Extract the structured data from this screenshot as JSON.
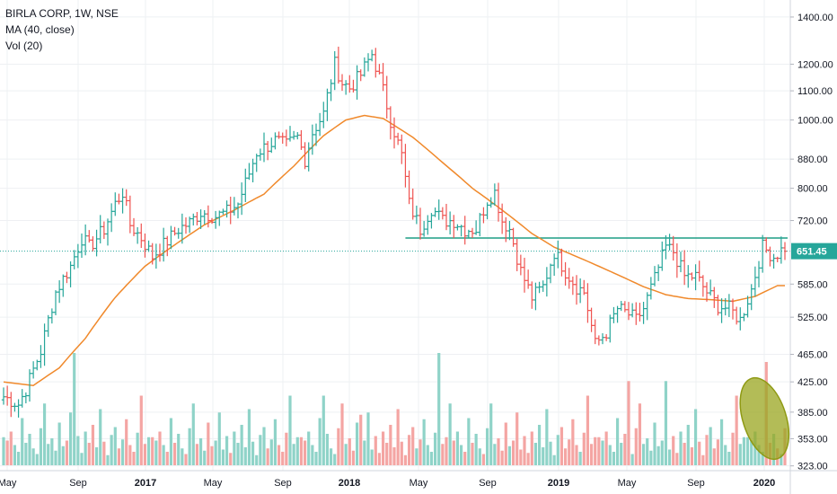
{
  "header": {
    "symbol_line": "BIRLA CORP, 1W, NSE",
    "ma_line": "MA (40, close)",
    "vol_line": "Vol (20)"
  },
  "colors": {
    "up": "#26a69a",
    "down": "#ef5350",
    "vol_up": "#8fd3c8",
    "vol_down": "#f4a5a3",
    "ma": "#f0892b",
    "hline": "#1e9e86",
    "grid": "#eef0f3",
    "ellipse_fill": "#9aa61f",
    "ellipse_stroke": "#8f9a14",
    "price_badge": "#26a69a"
  },
  "chart_data": {
    "type": "ohlc",
    "title": "BIRLA CORP, 1W, NSE",
    "y_axis": {
      "scale": "log",
      "range": [
        318,
        1480
      ],
      "tick_labels": [
        "1400.00",
        "1200.00",
        "1100.00",
        "1000.00",
        "880.00",
        "800.00",
        "720.00",
        "651.45",
        "585.00",
        "525.00",
        "465.00",
        "425.00",
        "385.00",
        "353.00",
        "323.00"
      ]
    },
    "x_axis": {
      "tick_labels": [
        "May",
        "Sep",
        "2017",
        "May",
        "Sep",
        "2018",
        "May",
        "Sep",
        "2019",
        "May",
        "Sep",
        "2020"
      ]
    },
    "last_price": 651.45,
    "horizontal_level": 680,
    "price_path": [
      [
        0,
        405
      ],
      [
        4,
        395
      ],
      [
        6,
        415
      ],
      [
        10,
        470
      ],
      [
        14,
        570
      ],
      [
        18,
        620
      ],
      [
        21,
        680
      ],
      [
        23,
        660
      ],
      [
        27,
        700
      ],
      [
        30,
        760
      ],
      [
        32,
        790
      ],
      [
        34,
        710
      ],
      [
        37,
        680
      ],
      [
        40,
        640
      ],
      [
        43,
        665
      ],
      [
        47,
        700
      ],
      [
        50,
        715
      ],
      [
        53,
        740
      ],
      [
        57,
        730
      ],
      [
        60,
        740
      ],
      [
        63,
        760
      ],
      [
        66,
        840
      ],
      [
        68,
        900
      ],
      [
        71,
        920
      ],
      [
        73,
        935
      ],
      [
        76,
        920
      ],
      [
        79,
        945
      ],
      [
        81,
        880
      ],
      [
        83,
        960
      ],
      [
        86,
        1020
      ],
      [
        89,
        1200
      ],
      [
        91,
        1130
      ],
      [
        93,
        1110
      ],
      [
        96,
        1160
      ],
      [
        99,
        1240
      ],
      [
        101,
        1150
      ],
      [
        104,
        1000
      ],
      [
        107,
        890
      ],
      [
        109,
        760
      ],
      [
        112,
        700
      ],
      [
        115,
        750
      ],
      [
        118,
        720
      ],
      [
        121,
        720
      ],
      [
        124,
        700
      ],
      [
        127,
        700
      ],
      [
        130,
        770
      ],
      [
        132,
        790
      ],
      [
        134,
        720
      ],
      [
        136,
        700
      ],
      [
        139,
        610
      ],
      [
        142,
        560
      ],
      [
        145,
        580
      ],
      [
        148,
        650
      ],
      [
        151,
        610
      ],
      [
        154,
        580
      ],
      [
        156,
        570
      ],
      [
        159,
        480
      ],
      [
        162,
        500
      ],
      [
        165,
        540
      ],
      [
        168,
        530
      ],
      [
        170,
        520
      ],
      [
        172,
        540
      ],
      [
        175,
        595
      ],
      [
        178,
        660
      ],
      [
        180,
        650
      ],
      [
        183,
        600
      ],
      [
        186,
        600
      ],
      [
        189,
        570
      ],
      [
        192,
        545
      ],
      [
        195,
        540
      ],
      [
        198,
        520
      ],
      [
        201,
        575
      ],
      [
        204,
        660
      ],
      [
        207,
        640
      ],
      [
        210,
        660
      ]
    ],
    "ma_path": [
      [
        0,
        425
      ],
      [
        8,
        420
      ],
      [
        15,
        445
      ],
      [
        22,
        490
      ],
      [
        30,
        560
      ],
      [
        38,
        620
      ],
      [
        46,
        665
      ],
      [
        54,
        710
      ],
      [
        62,
        745
      ],
      [
        70,
        785
      ],
      [
        78,
        860
      ],
      [
        86,
        950
      ],
      [
        92,
        1000
      ],
      [
        97,
        1015
      ],
      [
        102,
        1005
      ],
      [
        110,
        945
      ],
      [
        118,
        870
      ],
      [
        126,
        800
      ],
      [
        134,
        745
      ],
      [
        142,
        690
      ],
      [
        148,
        660
      ],
      [
        154,
        640
      ],
      [
        160,
        620
      ],
      [
        166,
        600
      ],
      [
        172,
        580
      ],
      [
        178,
        565
      ],
      [
        184,
        558
      ],
      [
        190,
        556
      ],
      [
        196,
        553
      ],
      [
        202,
        562
      ],
      [
        208,
        582
      ]
    ],
    "volume_pattern": [
      0.25,
      0.22,
      0.3,
      0.18,
      0.12,
      0.42,
      0.2,
      0.28,
      0.15,
      0.1,
      0.33,
      0.55,
      0.19,
      0.24,
      0.13,
      0.38,
      0.17,
      0.22,
      0.47,
      0.14,
      0.26,
      0.11,
      0.3,
      0.2,
      0.36,
      0.16,
      0.5,
      0.21,
      0.09,
      0.27,
      0.34,
      0.15,
      0.23,
      0.41,
      0.18,
      0.12,
      0.29,
      0.62,
      0.19,
      0.25
    ],
    "volume_spikes": {
      "19": 1.0,
      "86": 0.62,
      "96": 0.45,
      "117": 1.0,
      "120": 0.55,
      "168": 0.75,
      "178": 0.75,
      "205": 0.92
    },
    "highlight_ellipse_around_bar": 205,
    "series": [
      {
        "name": "MA (40, close)"
      },
      {
        "name": "Vol (20)"
      }
    ]
  }
}
